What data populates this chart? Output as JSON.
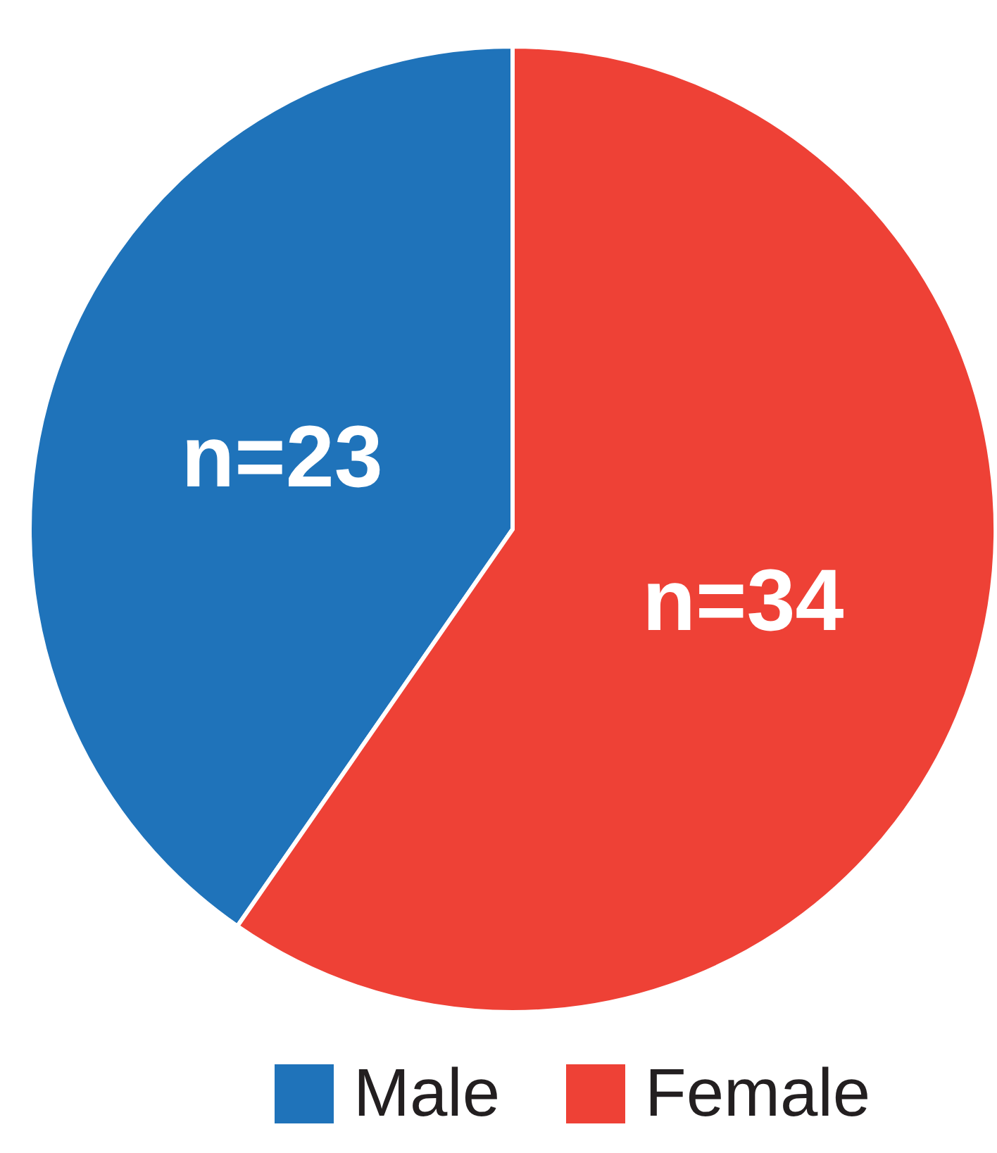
{
  "chart_data": {
    "type": "pie",
    "categories": [
      "Male",
      "Female"
    ],
    "values": [
      23,
      34
    ],
    "colors": [
      "#1f73ba",
      "#ee4136"
    ],
    "value_labels": [
      "n=23",
      "n=34"
    ],
    "legend": "bottom"
  }
}
